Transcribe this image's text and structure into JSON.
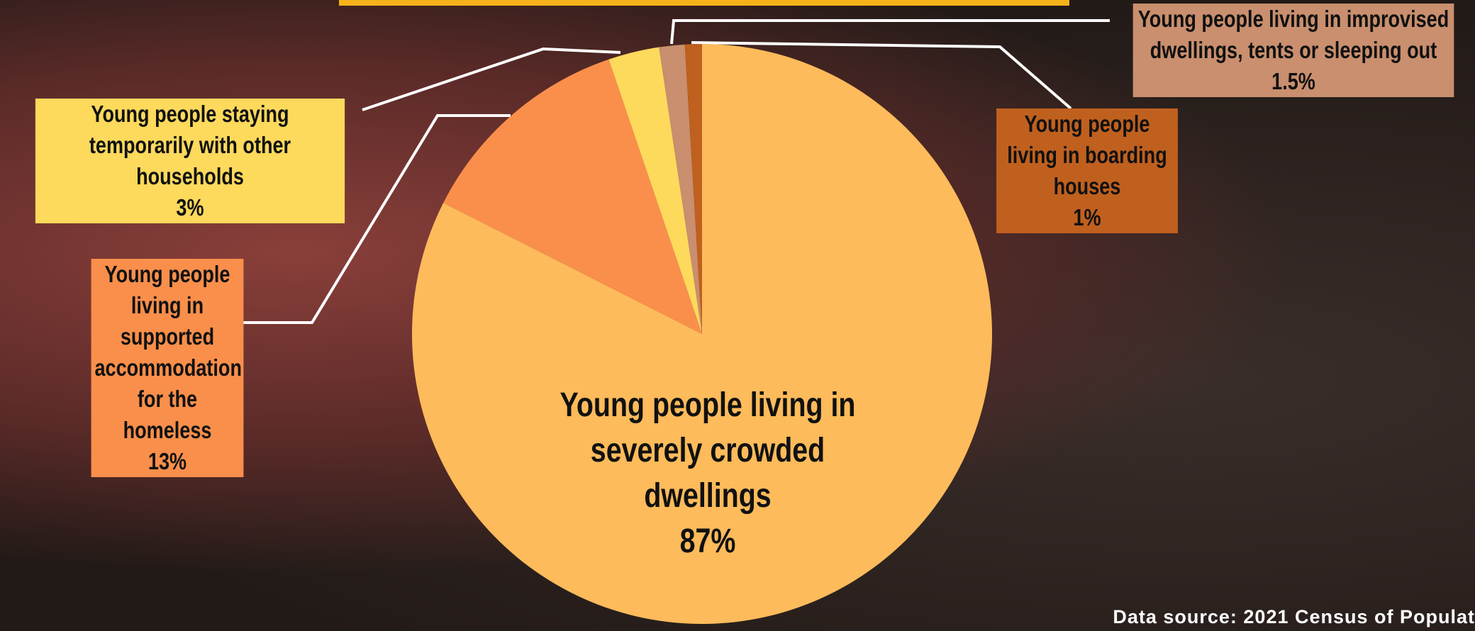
{
  "chart_data": {
    "type": "pie",
    "categories": [
      "Young people living in severely crowded dwellings",
      "Young people living in supported accommodation for the homeless",
      "Young people staying temporarily with other households",
      "Young people living in improvised dwellings, tents or sleeping out",
      "Young people living in boarding houses"
    ],
    "values": [
      87,
      13,
      3,
      1.5,
      1
    ],
    "value_labels": [
      "87%",
      "13%",
      "3%",
      "1.5%",
      "1%"
    ],
    "colors": [
      "#fdbb5b",
      "#f98f4b",
      "#fdd95c",
      "#c98f6e",
      "#c0601e"
    ],
    "source": "Data source: 2021 Census of Populat"
  }
}
